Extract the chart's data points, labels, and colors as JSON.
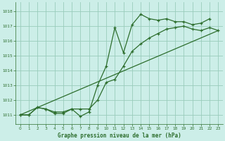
{
  "bg_color": "#cceee8",
  "grid_color": "#99ccbb",
  "line_color": "#2d6e2d",
  "xlabel": "Graphe pression niveau de la mer (hPa)",
  "xlim": [
    -0.5,
    23.5
  ],
  "ylim": [
    1010.4,
    1018.6
  ],
  "yticks": [
    1011,
    1012,
    1013,
    1014,
    1015,
    1016,
    1017,
    1018
  ],
  "xticks": [
    0,
    1,
    2,
    3,
    4,
    5,
    6,
    7,
    8,
    9,
    10,
    11,
    12,
    13,
    14,
    15,
    16,
    17,
    18,
    19,
    20,
    21,
    22,
    23
  ],
  "series1_x": [
    0,
    1,
    2,
    3,
    4,
    5,
    6,
    7,
    8,
    9,
    10,
    11,
    12,
    13,
    14,
    15,
    16,
    17,
    18,
    19,
    20,
    21,
    22
  ],
  "series1_y": [
    1011.0,
    1011.0,
    1011.5,
    1011.4,
    1011.1,
    1011.1,
    1011.4,
    1010.9,
    1011.2,
    1013.0,
    1014.3,
    1016.9,
    1015.2,
    1017.1,
    1017.8,
    1017.5,
    1017.4,
    1017.5,
    1017.3,
    1017.3,
    1017.1,
    1017.2,
    1017.5
  ],
  "series2_x": [
    0,
    1,
    2,
    3,
    4,
    5,
    6,
    7,
    8,
    9,
    10,
    11,
    12,
    13,
    14,
    15,
    16,
    17,
    18,
    19,
    20,
    21,
    22,
    23
  ],
  "series2_y": [
    1011.0,
    1011.0,
    1011.5,
    1011.4,
    1011.2,
    1011.2,
    1011.4,
    1011.4,
    1011.4,
    1012.0,
    1013.2,
    1013.4,
    1014.3,
    1015.3,
    1015.8,
    1016.2,
    1016.5,
    1016.8,
    1016.9,
    1017.0,
    1016.8,
    1016.7,
    1016.9,
    1016.7
  ],
  "series3_x": [
    0,
    23
  ],
  "series3_y": [
    1011.0,
    1016.7
  ]
}
